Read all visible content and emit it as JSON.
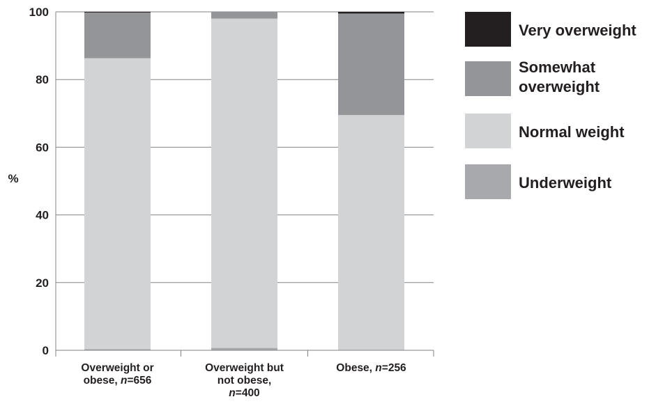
{
  "chart_data": {
    "type": "bar",
    "stacked": true,
    "ylabel": "%",
    "xlabel": "",
    "ylim": [
      0,
      100
    ],
    "yticks": [
      0,
      20,
      40,
      60,
      80,
      100
    ],
    "grid": true,
    "legend_position": "right",
    "categories": [
      {
        "parts": [
          {
            "text": "Overweight or",
            "italic": false
          }
        ],
        "line2": [
          {
            "text": "obese, ",
            "italic": false
          },
          {
            "text": "n",
            "italic": true
          },
          {
            "text": "=656",
            "italic": false
          }
        ]
      },
      {
        "parts": [
          {
            "text": "Overweight but",
            "italic": false
          }
        ],
        "line2": [
          {
            "text": "not obese,",
            "italic": false
          }
        ],
        "line3": [
          {
            "text": "n",
            "italic": true
          },
          {
            "text": "=400",
            "italic": false
          }
        ]
      },
      {
        "parts": [
          {
            "text": "Obese, ",
            "italic": false
          },
          {
            "text": "n",
            "italic": true
          },
          {
            "text": "=256",
            "italic": false
          }
        ]
      }
    ],
    "series": [
      {
        "name": "Underweight",
        "color": "#a7a9ac",
        "values": [
          0.3,
          0.7,
          0.0
        ]
      },
      {
        "name": "Normal weight",
        "color": "#d1d3d4",
        "values": [
          86.0,
          97.3,
          69.5
        ]
      },
      {
        "name": "Somewhat overweight",
        "color": "#939598",
        "values": [
          13.5,
          2.0,
          30.0
        ]
      },
      {
        "name": "Very overweight",
        "color": "#231f20",
        "values": [
          0.2,
          0.0,
          0.5
        ]
      }
    ],
    "legend": [
      {
        "lines": [
          "Very overweight"
        ],
        "color": "#231f20"
      },
      {
        "lines": [
          "Somewhat",
          "overweight"
        ],
        "color": "#939598"
      },
      {
        "lines": [
          "Normal weight"
        ],
        "color": "#d1d3d4"
      },
      {
        "lines": [
          "Underweight"
        ],
        "color": "#a7a9ac"
      }
    ],
    "grid_color": "#808285",
    "axis_color": "#808285"
  }
}
